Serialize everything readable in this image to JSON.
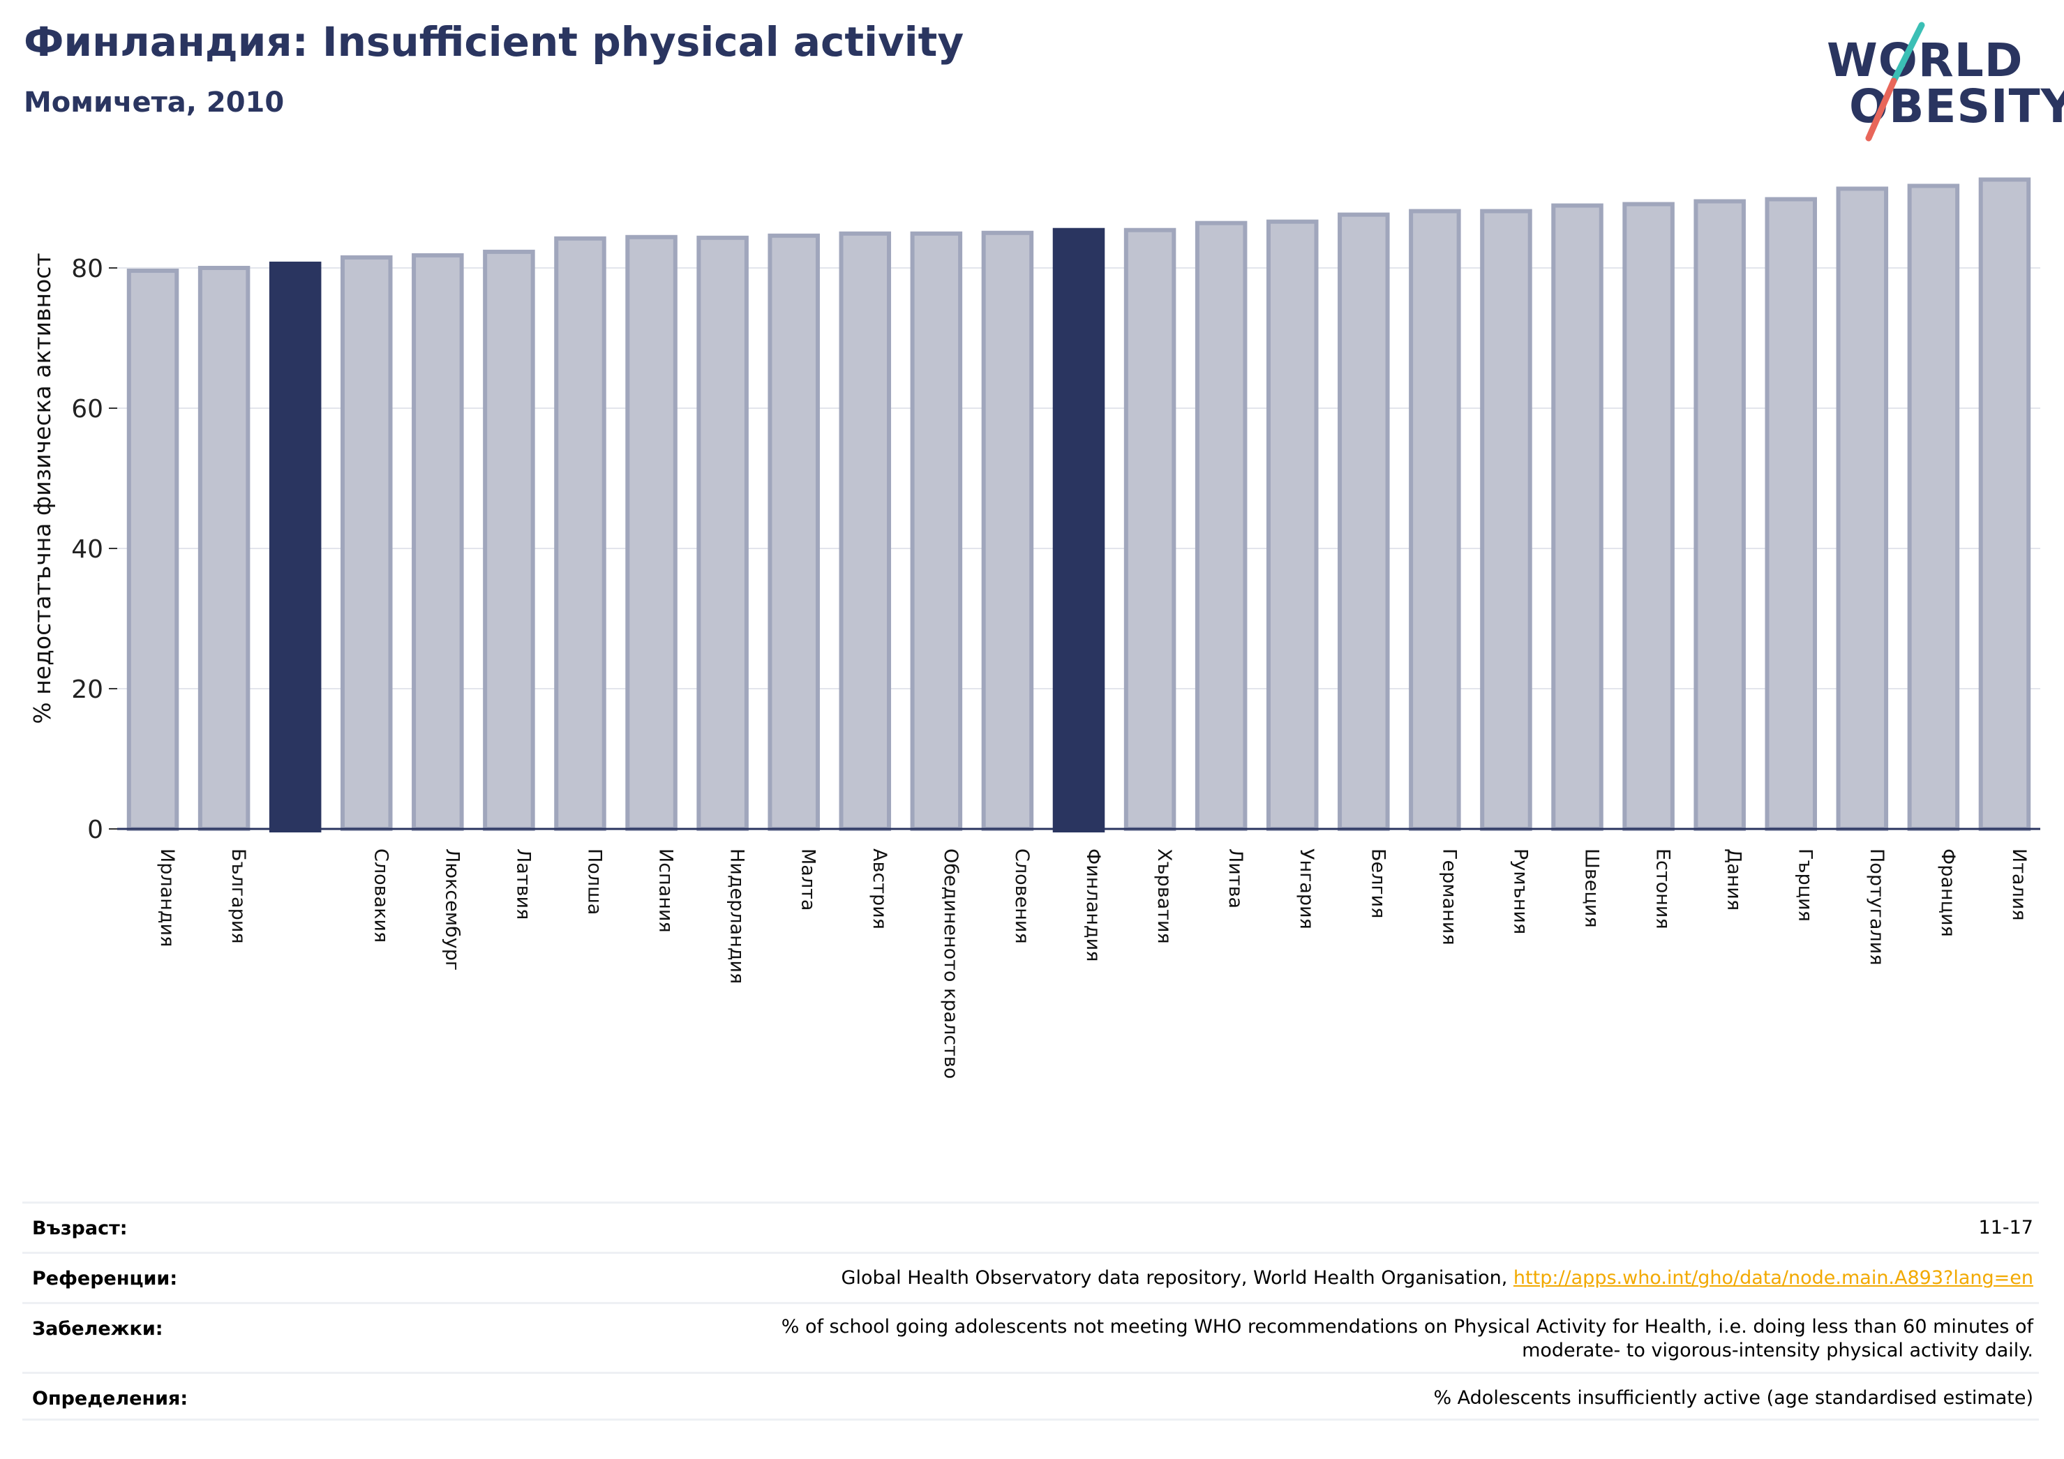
{
  "header": {
    "title": "Финландия: Insufficient physical activity",
    "subtitle": "Момичета, 2010"
  },
  "logo": {
    "line1": "WORLD",
    "line2": "OBESITY",
    "colors": {
      "text": "#2a3560",
      "slash_top": "#3bbfb5",
      "slash_bottom": "#e8665a"
    }
  },
  "colors": {
    "bar_default_fill": "#c0c3d0",
    "bar_default_stroke": "#a0a6bc",
    "bar_highlight": "#2a3560",
    "axis": "#2a3560",
    "grid": "#e3e5ec"
  },
  "chart_data": {
    "type": "bar",
    "ylabel": "% недостатъчна физическа активност",
    "ylim": [
      0,
      95
    ],
    "yticks": [
      0,
      20,
      40,
      60,
      80
    ],
    "grid": true,
    "categories": [
      "Ирландия",
      "България",
      "",
      "Словакия",
      "Люксембург",
      "Латвия",
      "Полша",
      "Испания",
      "Нидерландия",
      "Малта",
      "Австрия",
      "Обединеното кралство",
      "Словения",
      "Финландия",
      "Хърватия",
      "Литва",
      "Унгария",
      "Белгия",
      "Германия",
      "Румъния",
      "Швеция",
      "Естония",
      "Дания",
      "Гърция",
      "Португалия",
      "Франция",
      "Италия"
    ],
    "values": [
      79.6,
      80.0,
      80.9,
      81.5,
      81.8,
      82.3,
      84.2,
      84.4,
      84.3,
      84.6,
      84.9,
      84.9,
      85.0,
      85.7,
      85.4,
      86.4,
      86.6,
      87.6,
      88.1,
      88.1,
      88.9,
      89.1,
      89.5,
      89.8,
      91.3,
      91.7,
      92.6
    ],
    "highlighted": [
      2,
      13
    ]
  },
  "meta": {
    "age": {
      "label": "Възраст:",
      "value": "11-17"
    },
    "references": {
      "label": "Референции:",
      "value": "Global Health Observatory data repository, World Health Organisation, ",
      "link": "http://apps.who.int/gho/data/node.main.A893?lang=en"
    },
    "notes": {
      "label": "Забележки:",
      "line1": "% of school going adolescents not meeting WHO recommendations on Physical Activity for Health, i.e. doing less than 60 minutes of",
      "line2": "moderate- to vigorous-intensity physical activity daily."
    },
    "definitions": {
      "label": "Определения:",
      "value": "% Adolescents insufficiently active (age standardised estimate)"
    }
  }
}
